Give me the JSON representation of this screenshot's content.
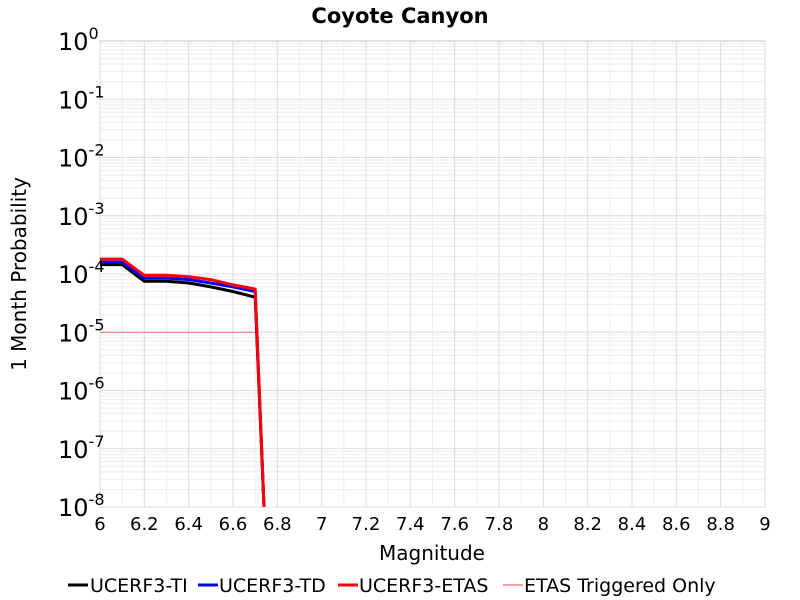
{
  "chart_data": {
    "type": "line",
    "title": "Coyote Canyon",
    "xlabel": "Magnitude",
    "ylabel": "1 Month Probability",
    "xlim": [
      6,
      9
    ],
    "ylim": [
      1e-08,
      1
    ],
    "yscale": "log",
    "grid": true,
    "legend_position": "bottom",
    "x_ticks": [
      "6",
      "6.2",
      "6.4",
      "6.6",
      "6.8",
      "7",
      "7.2",
      "7.4",
      "7.6",
      "7.8",
      "8",
      "8.2",
      "8.4",
      "8.6",
      "8.8",
      "9"
    ],
    "y_ticks": [
      {
        "base": "10",
        "exp": "0"
      },
      {
        "base": "10",
        "exp": "-1"
      },
      {
        "base": "10",
        "exp": "-2"
      },
      {
        "base": "10",
        "exp": "-3"
      },
      {
        "base": "10",
        "exp": "-4"
      },
      {
        "base": "10",
        "exp": "-5"
      },
      {
        "base": "10",
        "exp": "-6"
      },
      {
        "base": "10",
        "exp": "-7"
      },
      {
        "base": "10",
        "exp": "-8"
      }
    ],
    "series": [
      {
        "name": "UCERF3-TI",
        "color": "#000000",
        "x": [
          6.0,
          6.1,
          6.2,
          6.3,
          6.4,
          6.5,
          6.6,
          6.7,
          6.74
        ],
        "y": [
          0.000145,
          0.000145,
          7.5e-05,
          7.5e-05,
          7e-05,
          6e-05,
          5e-05,
          4e-05,
          1e-08
        ]
      },
      {
        "name": "UCERF3-TD",
        "color": "#0000ff",
        "x": [
          6.0,
          6.1,
          6.2,
          6.3,
          6.4,
          6.5,
          6.6,
          6.7,
          6.74
        ],
        "y": [
          0.00016,
          0.00016,
          8.5e-05,
          8.5e-05,
          8e-05,
          7e-05,
          6e-05,
          5e-05,
          1e-08
        ]
      },
      {
        "name": "UCERF3-ETAS",
        "color": "#ff0000",
        "x": [
          6.0,
          6.1,
          6.2,
          6.3,
          6.4,
          6.5,
          6.6,
          6.7,
          6.74
        ],
        "y": [
          0.00018,
          0.00018,
          9.5e-05,
          9.5e-05,
          9e-05,
          8e-05,
          6.5e-05,
          5.5e-05,
          1e-08
        ]
      },
      {
        "name": "ETAS Triggered Only",
        "color": "#ff7f7f",
        "x": [
          6.0,
          6.7
        ],
        "y": [
          1e-05,
          1e-05
        ]
      }
    ]
  }
}
